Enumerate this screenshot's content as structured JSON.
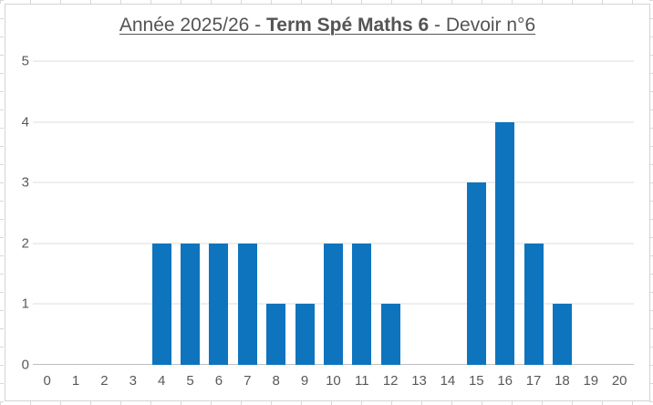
{
  "title": {
    "part1": "Année 2025/26 - ",
    "part2_bold": "Term Spé Maths 6",
    "part3": " - Devoir n°6"
  },
  "colors": {
    "bar": "#0e74bd",
    "gridline": "#dcdcdc",
    "axis_line": "#bfbfbf",
    "label_text": "#595959",
    "title_text": "#545454",
    "chart_border": "#d4d4d4",
    "background": "#ffffff"
  },
  "chart_data": {
    "type": "bar",
    "title": "Année 2025/26 - Term Spé Maths 6 - Devoir n°6",
    "categories": [
      "0",
      "1",
      "2",
      "3",
      "4",
      "5",
      "6",
      "7",
      "8",
      "9",
      "10",
      "11",
      "12",
      "13",
      "14",
      "15",
      "16",
      "17",
      "18",
      "19",
      "20"
    ],
    "values": [
      0,
      0,
      0,
      0,
      2,
      2,
      2,
      2,
      1,
      1,
      2,
      2,
      1,
      0,
      0,
      3,
      4,
      2,
      1,
      0,
      0
    ],
    "xlabel": "",
    "ylabel": "",
    "ylim": [
      0,
      5
    ],
    "yticks": [
      0,
      1,
      2,
      3,
      4,
      5
    ],
    "grid": true,
    "legend": "none",
    "bar_color": "#0e74bd"
  }
}
